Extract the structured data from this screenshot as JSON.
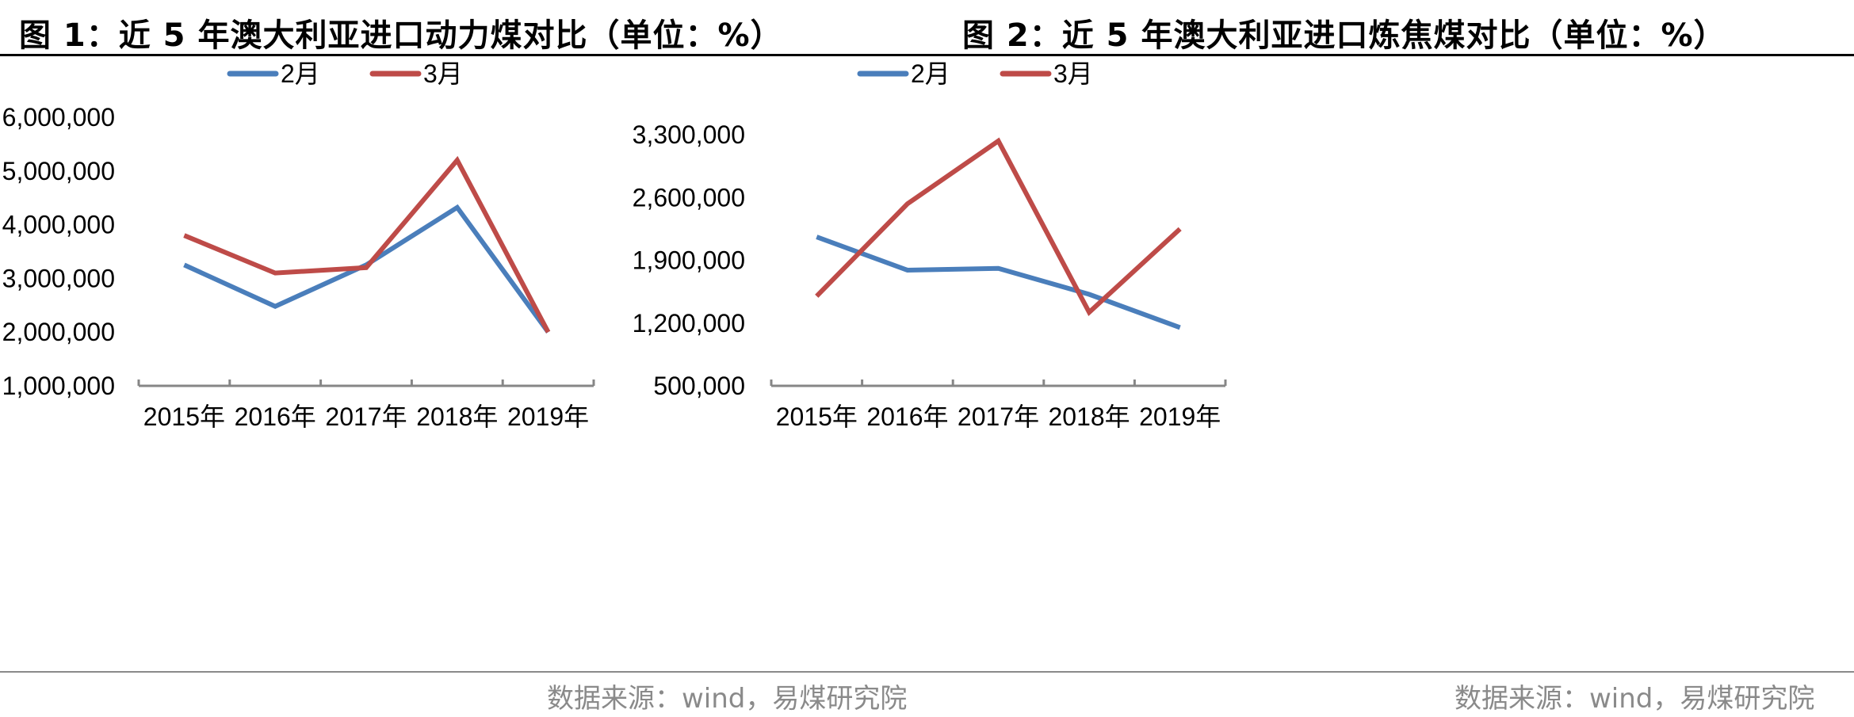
{
  "charts": [
    {
      "title": "图 1：近 5 年澳大利亚进口动力煤对比（单位：%）",
      "source": "数据来源：wind，易煤研究院",
      "chart_data": {
        "type": "line",
        "categories": [
          "2015年",
          "2016年",
          "2017年",
          "2018年",
          "2019年"
        ],
        "series": [
          {
            "name": "2月",
            "color": "#4a7ebb",
            "values": [
              3250000,
              2480000,
              3250000,
              4320000,
              2000000
            ]
          },
          {
            "name": "3月",
            "color": "#be4b48",
            "values": [
              3800000,
              3100000,
              3200000,
              5200000,
              2000000
            ]
          }
        ],
        "yticks": [
          1000000,
          2000000,
          3000000,
          4000000,
          5000000,
          6000000
        ],
        "ytick_labels": [
          "1,000,000",
          "2,000,000",
          "3,000,000",
          "4,000,000",
          "5,000,000",
          "6,000,000"
        ],
        "ylim": [
          1000000,
          6000000
        ],
        "legend": "top-center",
        "grid": false
      }
    },
    {
      "title": "图 2：近 5 年澳大利亚进口炼焦煤对比（单位：%）",
      "source": "数据来源：wind，易煤研究院",
      "chart_data": {
        "type": "line",
        "categories": [
          "2015年",
          "2016年",
          "2017年",
          "2018年",
          "2019年"
        ],
        "series": [
          {
            "name": "2月",
            "color": "#4a7ebb",
            "values": [
              2160000,
              1790000,
              1810000,
              1520000,
              1150000
            ]
          },
          {
            "name": "3月",
            "color": "#be4b48",
            "values": [
              1500000,
              2530000,
              3230000,
              1320000,
              2250000
            ]
          }
        ],
        "yticks": [
          500000,
          1200000,
          1900000,
          2600000,
          3300000
        ],
        "ytick_labels": [
          "500,000",
          "1,200,000",
          "1,900,000",
          "2,600,000",
          "3,300,000"
        ],
        "ylim": [
          500000,
          3300000
        ],
        "legend": "top-center",
        "grid": false
      }
    }
  ]
}
